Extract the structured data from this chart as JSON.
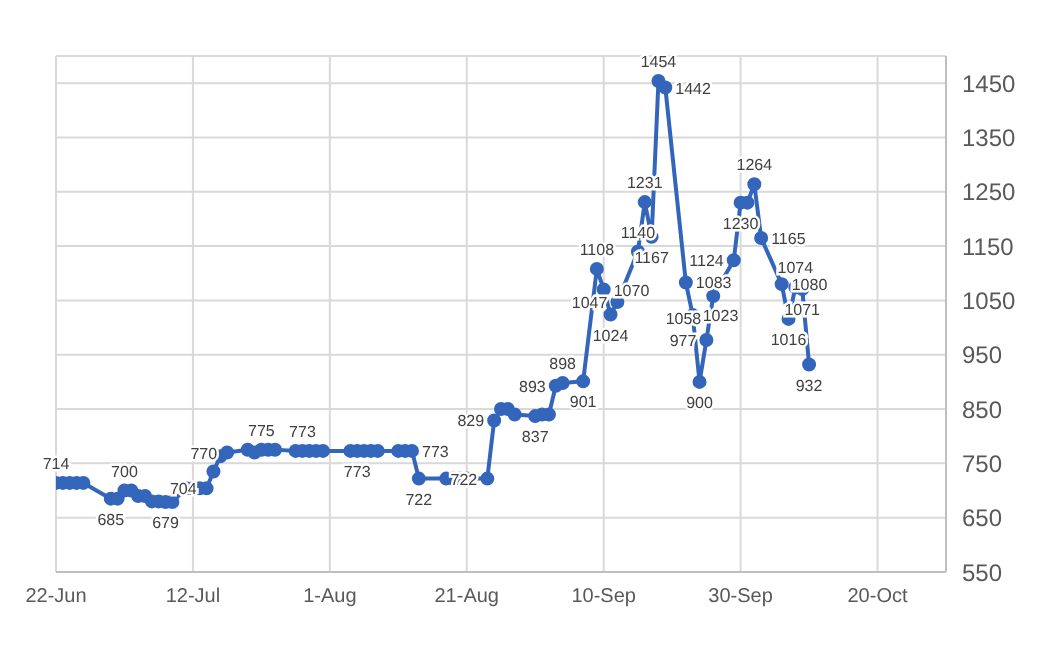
{
  "chart_data": {
    "type": "line",
    "x": [
      "--06-22",
      "--06-23",
      "--06-24",
      "--06-25",
      "--06-26",
      "--06-30",
      "--07-01",
      "--07-02",
      "--07-03",
      "--07-04",
      "--07-05",
      "--07-06",
      "--07-07",
      "--07-08",
      "--07-09",
      "--07-11",
      "--07-12",
      "--07-13",
      "--07-14",
      "--07-15",
      "--07-16",
      "--07-17",
      "--07-20",
      "--07-21",
      "--07-22",
      "--07-23",
      "--07-24",
      "--07-27",
      "--07-28",
      "--07-29",
      "--07-30",
      "--07-31",
      "--08-04",
      "--08-05",
      "--08-06",
      "--08-07",
      "--08-08",
      "--08-11",
      "--08-12",
      "--08-13",
      "--08-14",
      "--08-18",
      "--08-19",
      "--08-20",
      "--08-21",
      "--08-24",
      "--08-25",
      "--08-26",
      "--08-27",
      "--08-28",
      "--08-31",
      "--09-01",
      "--09-02",
      "--09-03",
      "--09-04",
      "--09-07",
      "--09-09",
      "--09-10",
      "--09-11",
      "--09-12",
      "--09-15",
      "--09-16",
      "--09-17",
      "--09-18",
      "--09-19",
      "--09-22",
      "--09-23",
      "--09-24",
      "--09-25",
      "--09-26",
      "--09-29",
      "--09-30",
      "--10-01",
      "--10-02",
      "--10-03",
      "--10-06",
      "--10-07",
      "--10-08",
      "--10-09",
      "--10-10"
    ],
    "series": [
      {
        "color": "#3366bb",
        "values": [
          714,
          714,
          714,
          714,
          714,
          685,
          685,
          700,
          700,
          690,
          690,
          680,
          680,
          679,
          679,
          704,
          704,
          704,
          704,
          735,
          763,
          770,
          775,
          770,
          775,
          775,
          775,
          773,
          773,
          773,
          773,
          773,
          773,
          773,
          773,
          773,
          773,
          773,
          773,
          773,
          722,
          722,
          722,
          722,
          722,
          722,
          829,
          850,
          850,
          840,
          837,
          840,
          840,
          893,
          898,
          901,
          1108,
          1070,
          1024,
          1047,
          1140,
          1231,
          1167,
          1454,
          1442,
          1083,
          1023,
          900,
          977,
          1058,
          1124,
          1230,
          1230,
          1264,
          1165,
          1080,
          1016,
          1074,
          1071,
          932
        ],
        "value_labels": [
          "714",
          null,
          null,
          null,
          null,
          "685",
          null,
          "700",
          null,
          null,
          null,
          null,
          null,
          "679",
          null,
          null,
          null,
          null,
          "704",
          null,
          null,
          "770",
          null,
          null,
          "775",
          null,
          null,
          null,
          "773",
          null,
          null,
          null,
          null,
          "773",
          null,
          null,
          null,
          null,
          null,
          "773",
          "722",
          null,
          null,
          null,
          null,
          "722",
          "829",
          null,
          null,
          null,
          "837",
          null,
          null,
          "893",
          "898",
          "901",
          "1108",
          "1070",
          "1024",
          "1047",
          "1140",
          "1231",
          "1167",
          "1454",
          "1442",
          "1083",
          "1023",
          "900",
          "977",
          "1058",
          "1124",
          "1230",
          null,
          "1264",
          "1165",
          "1080",
          "1016",
          "1074",
          "1071",
          "932"
        ]
      }
    ],
    "xlim": [
      "--06-22",
      "--10-30"
    ],
    "xticks": [
      {
        "value": "--06-22",
        "label": "22-Jun"
      },
      {
        "value": "--07-12",
        "label": "12-Jul"
      },
      {
        "value": "--08-01",
        "label": "1-Aug"
      },
      {
        "value": "--08-21",
        "label": "21-Aug"
      },
      {
        "value": "--09-10",
        "label": "10-Sep"
      },
      {
        "value": "--09-30",
        "label": "30-Sep"
      },
      {
        "value": "--10-20",
        "label": "20-Oct"
      }
    ],
    "ylim": [
      550,
      1500
    ],
    "yticks": [
      550,
      650,
      750,
      850,
      950,
      1050,
      1150,
      1250,
      1350,
      1450
    ],
    "grid": true,
    "marker": "circle",
    "line_style": "solid"
  }
}
